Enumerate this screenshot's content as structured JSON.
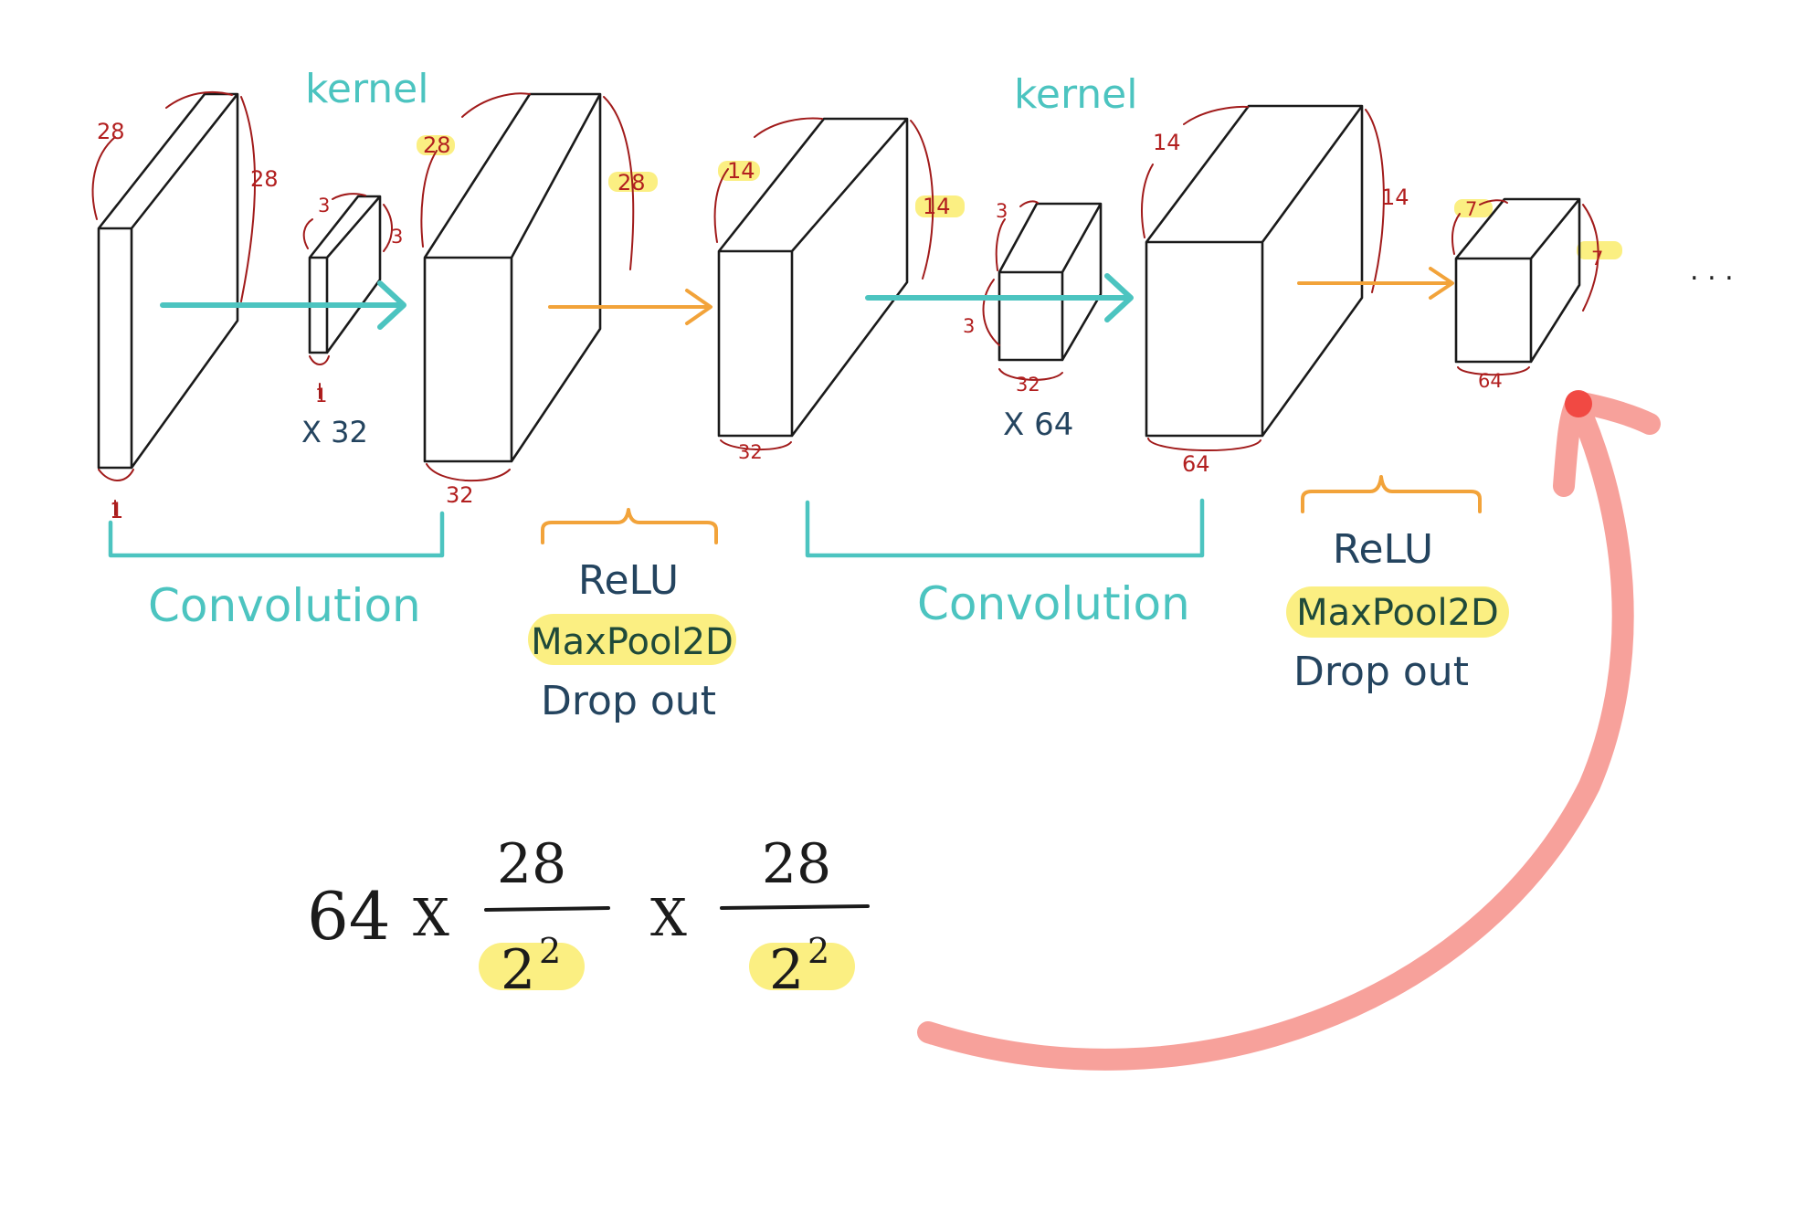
{
  "labels": {
    "kernel_1": "kernel",
    "kernel_2": "kernel",
    "multiplier_1": "X 32",
    "multiplier_2": "X 64",
    "convolution_1": "Convolution",
    "convolution_2": "Convolution",
    "relu_1": "ReLU",
    "maxpool_1": "MaxPool2D",
    "dropout_1": "Drop out",
    "relu_2": "ReLU",
    "maxpool_2": "MaxPool2D",
    "dropout_2": "Drop out",
    "ellipsis": ". . ."
  },
  "dims": {
    "input": {
      "height": "28",
      "width": "28",
      "depth": "1"
    },
    "kernel1": {
      "height": "3",
      "width": "3",
      "depth": "1"
    },
    "conv1": {
      "height": "28",
      "width": "28",
      "depth": "32"
    },
    "pool1": {
      "height": "14",
      "width": "14",
      "depth": "32"
    },
    "kernel2": {
      "height": "3",
      "width": "3",
      "depth": "32"
    },
    "conv2": {
      "height": "14",
      "width": "14",
      "depth": "64"
    },
    "pool2": {
      "height": "7",
      "width": "7",
      "depth": "64"
    }
  },
  "formula": {
    "coefficient": "64",
    "times_1": "X",
    "frac1_numerator": "28",
    "frac1_base": "2",
    "frac1_exponent": "2",
    "times_2": "X",
    "frac2_numerator": "28",
    "frac2_base": "2",
    "frac2_exponent": "2"
  },
  "colors": {
    "convolution": "#4cc4c0",
    "activation": "#f2a33a",
    "operation_text": "#24445f",
    "dimension_text": "#b21f1f",
    "highlight": "#fbef82",
    "return_arrow": "#f7a19b"
  }
}
